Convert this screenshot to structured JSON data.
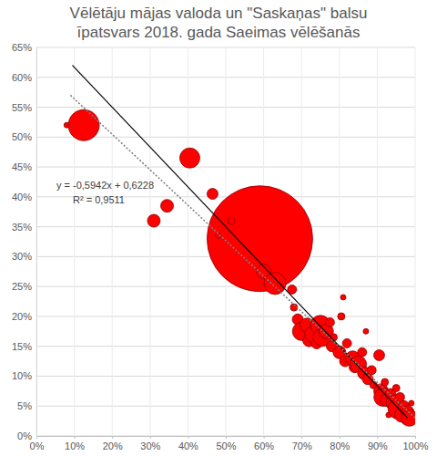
{
  "chart_data": {
    "type": "scatter",
    "title": [
      "Vēlētāju mājas valoda un \"Saskaņas\" balsu",
      "īpatsvars 2018. gada Saeimas vēlēšanās"
    ],
    "annotations": [
      "y = -0,5942x + 0,6228",
      "R² = 0,9511"
    ],
    "xlim": [
      0,
      100
    ],
    "ylim": [
      0,
      65
    ],
    "xticks": [
      {
        "value": 0,
        "label": "0%"
      },
      {
        "value": 10,
        "label": "10%"
      },
      {
        "value": 20,
        "label": "20%"
      },
      {
        "value": 30,
        "label": "30%"
      },
      {
        "value": 40,
        "label": "40%"
      },
      {
        "value": 50,
        "label": "50%"
      },
      {
        "value": 60,
        "label": "60%"
      },
      {
        "value": 70,
        "label": "70%"
      },
      {
        "value": 80,
        "label": "80%"
      },
      {
        "value": 90,
        "label": "90%"
      },
      {
        "value": 100,
        "label": "100%"
      }
    ],
    "yticks": [
      {
        "value": 0,
        "label": "0%"
      },
      {
        "value": 5,
        "label": "5%"
      },
      {
        "value": 10,
        "label": "10%"
      },
      {
        "value": 15,
        "label": "15%"
      },
      {
        "value": 20,
        "label": "20%"
      },
      {
        "value": 25,
        "label": "25%"
      },
      {
        "value": 30,
        "label": "30%"
      },
      {
        "value": 35,
        "label": "35%"
      },
      {
        "value": 40,
        "label": "40%"
      },
      {
        "value": 45,
        "label": "45%"
      },
      {
        "value": 50,
        "label": "50%"
      },
      {
        "value": 55,
        "label": "55%"
      },
      {
        "value": 60,
        "label": "60%"
      },
      {
        "value": 65,
        "label": "65%"
      }
    ],
    "grid": true,
    "series": [
      {
        "type": "scatter",
        "color": "#ff0000",
        "marker": "circle",
        "x": [
          8,
          12.5,
          31,
          34.5,
          40.5,
          46.5,
          59,
          48,
          51.5,
          60,
          63,
          67.5,
          68,
          69,
          70,
          71.5,
          72,
          73,
          74,
          75,
          75.5,
          76.5,
          77.5,
          78,
          78.5,
          80,
          80.5,
          81,
          81.5,
          82,
          83.5,
          84,
          85,
          86,
          86.5,
          87,
          87.5,
          88.5,
          89,
          90.5,
          91,
          91.5,
          92,
          92.5,
          93,
          93.5,
          94.5,
          95,
          95.5,
          96,
          96.5,
          97,
          97.5,
          98,
          98.5,
          99
        ],
        "values": [
          52,
          52,
          36,
          38.5,
          46.5,
          40.5,
          33,
          33.5,
          36,
          27.5,
          25.5,
          24.5,
          21.5,
          19.5,
          17.5,
          18.5,
          16,
          17,
          15.5,
          18.5,
          16.5,
          17.5,
          19,
          15,
          16.5,
          14,
          20,
          23.2,
          12.5,
          15.5,
          13,
          11.5,
          12,
          14,
          10.5,
          17.5,
          9.5,
          11,
          8.5,
          13.5,
          7.5,
          6.5,
          9,
          6,
          3.5,
          7,
          5.5,
          8,
          4.5,
          6.5,
          3.5,
          5,
          2.5,
          4,
          3,
          5.5
        ],
        "sizes": [
          9,
          289,
          49,
          49,
          121,
          36,
          3364,
          9,
          16,
          64,
          144,
          25,
          16,
          36,
          100,
          64,
          49,
          81,
          36,
          121,
          100,
          64,
          25,
          36,
          16,
          49,
          16,
          9,
          36,
          25,
          64,
          36,
          81,
          25,
          49,
          9,
          36,
          25,
          16,
          36,
          64,
          100,
          16,
          49,
          9,
          36,
          81,
          16,
          121,
          25,
          64,
          36,
          16,
          49,
          81,
          9
        ]
      },
      {
        "type": "line",
        "color": "#000000",
        "line_style": "solid",
        "x": [
          9.5,
          98
        ],
        "values": [
          62,
          3
        ]
      },
      {
        "type": "line",
        "color": "#808080",
        "line_style": "dotted",
        "x": [
          9,
          100
        ],
        "values": [
          57,
          3
        ]
      }
    ]
  }
}
